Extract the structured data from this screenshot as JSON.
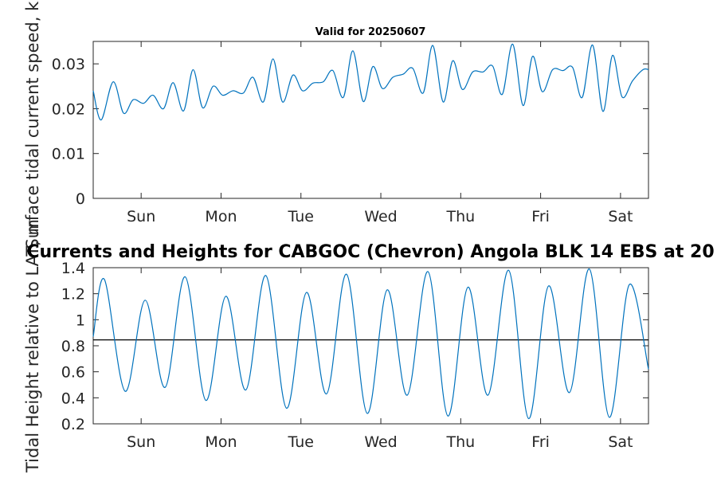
{
  "chart_data": [
    {
      "type": "line",
      "title": "Valid for 20250607",
      "ylabel": "Surface tidal current speed, kn",
      "xlabel": "",
      "xlim": [
        0,
        6.95
      ],
      "ylim": [
        0,
        0.035
      ],
      "x_tick_values": [
        0.6,
        1.6,
        2.6,
        3.6,
        4.6,
        5.6,
        6.6
      ],
      "x_tick_labels": [
        "Sun",
        "Mon",
        "Tue",
        "Wed",
        "Thu",
        "Fri",
        "Sat"
      ],
      "y_ticks": [
        0,
        0.01,
        0.02,
        0.03
      ],
      "y_tick_labels": [
        "0",
        "0.01",
        "0.02",
        "0.03"
      ],
      "grid": false,
      "series": [
        {
          "color": "#0072BD",
          "x": [
            0,
            0.1,
            0.25,
            0.38,
            0.5,
            0.63,
            0.75,
            0.88,
            1,
            1.13,
            1.25,
            1.37,
            1.5,
            1.62,
            1.75,
            1.88,
            2,
            2.13,
            2.25,
            2.37,
            2.5,
            2.62,
            2.75,
            2.88,
            3,
            3.13,
            3.25,
            3.38,
            3.5,
            3.62,
            3.75,
            3.88,
            4,
            4.13,
            4.25,
            4.38,
            4.5,
            4.62,
            4.75,
            4.88,
            5,
            5.12,
            5.25,
            5.38,
            5.5,
            5.62,
            5.75,
            5.88,
            6,
            6.12,
            6.25,
            6.38,
            6.5,
            6.62,
            6.75,
            6.88,
            6.95
          ],
          "y": [
            0.024,
            0.0175,
            0.026,
            0.019,
            0.022,
            0.0212,
            0.023,
            0.02,
            0.0258,
            0.0195,
            0.0287,
            0.0202,
            0.025,
            0.023,
            0.024,
            0.0235,
            0.027,
            0.0215,
            0.0311,
            0.0215,
            0.0275,
            0.024,
            0.0257,
            0.026,
            0.0285,
            0.0225,
            0.0329,
            0.0216,
            0.0294,
            0.0245,
            0.027,
            0.0277,
            0.029,
            0.0235,
            0.0341,
            0.0215,
            0.0307,
            0.0243,
            0.0282,
            0.0282,
            0.0295,
            0.0232,
            0.0344,
            0.0207,
            0.0317,
            0.0238,
            0.0287,
            0.0285,
            0.0292,
            0.0225,
            0.0342,
            0.0194,
            0.0319,
            0.0226,
            0.0262,
            0.0287,
            0.0287
          ]
        }
      ]
    },
    {
      "type": "line",
      "title": "Currents and Heights for CABGOC (Chevron)  Angola BLK 14  EBS at 20",
      "ylabel": "Tidal Height relative to LAT, m",
      "xlabel": "",
      "xlim": [
        0,
        6.95
      ],
      "ylim": [
        0.2,
        1.4
      ],
      "x_tick_values": [
        0.6,
        1.6,
        2.6,
        3.6,
        4.6,
        5.6,
        6.6
      ],
      "x_tick_labels": [
        "Sun",
        "Mon",
        "Tue",
        "Wed",
        "Thu",
        "Fri",
        "Sat"
      ],
      "y_ticks": [
        0.2,
        0.4,
        0.6,
        0.8,
        1.0,
        1.2,
        1.4
      ],
      "y_tick_labels": [
        "0.2",
        "0.4",
        "0.6",
        "0.8",
        "1",
        "1.2",
        "1.4"
      ],
      "grid": false,
      "reference_line": 0.845,
      "series": [
        {
          "color": "#0072BD",
          "x": [
            0,
            0.14,
            0.4,
            0.65,
            0.9,
            1.15,
            1.41,
            1.66,
            1.91,
            2.16,
            2.42,
            2.67,
            2.92,
            3.17,
            3.43,
            3.68,
            3.93,
            4.19,
            4.44,
            4.69,
            4.94,
            5.2,
            5.45,
            5.7,
            5.96,
            6.21,
            6.46,
            6.71,
            6.95
          ],
          "y": [
            0.87,
            1.31,
            0.45,
            1.15,
            0.48,
            1.33,
            0.38,
            1.18,
            0.46,
            1.34,
            0.32,
            1.21,
            0.43,
            1.35,
            0.28,
            1.23,
            0.42,
            1.37,
            0.26,
            1.25,
            0.42,
            1.38,
            0.24,
            1.26,
            0.44,
            1.39,
            0.25,
            1.27,
            0.62
          ]
        }
      ]
    }
  ]
}
